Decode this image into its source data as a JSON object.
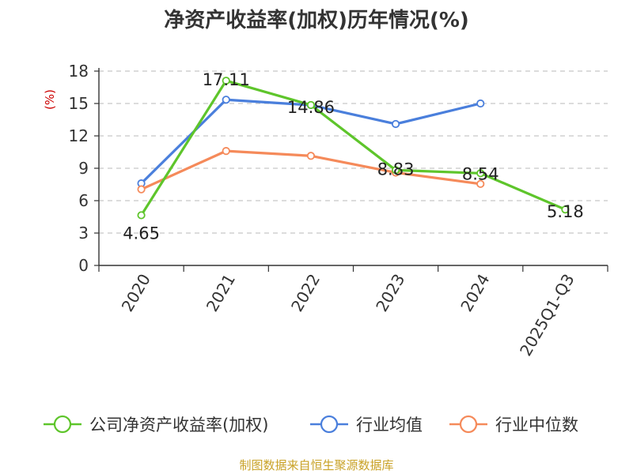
{
  "chart_data": {
    "type": "line",
    "title": "净资产收益率(加权)历年情况(%)",
    "ylabel": "(%)",
    "ylim": [
      0,
      18
    ],
    "yticks": [
      "0",
      "3",
      "6",
      "9",
      "12",
      "15",
      "18"
    ],
    "ytick_values": [
      0,
      3,
      6,
      9,
      12,
      15,
      18
    ],
    "categories": [
      "2020",
      "2021",
      "2022",
      "2023",
      "2024",
      "2025Q1-Q3"
    ],
    "grid": true,
    "legend_position": "bottom",
    "series": [
      {
        "name": "公司净资产收益率(加权)",
        "color": "#5ec52b",
        "values": [
          4.65,
          17.11,
          14.86,
          8.83,
          8.54,
          5.18
        ],
        "labels": [
          "4.65",
          "17.11",
          "14.86",
          "8.83",
          "8.54",
          "5.18"
        ]
      },
      {
        "name": "行业均值",
        "color": "#4a7fdc",
        "values": [
          7.6,
          15.35,
          14.85,
          13.1,
          15.0,
          null
        ]
      },
      {
        "name": "行业中位数",
        "color": "#f58a5a",
        "values": [
          7.05,
          10.6,
          10.15,
          8.6,
          7.55,
          null
        ]
      }
    ],
    "source": "制图数据来自恒生聚源数据库",
    "source_color": "#c9a227",
    "unit_color": "#cc0000"
  }
}
